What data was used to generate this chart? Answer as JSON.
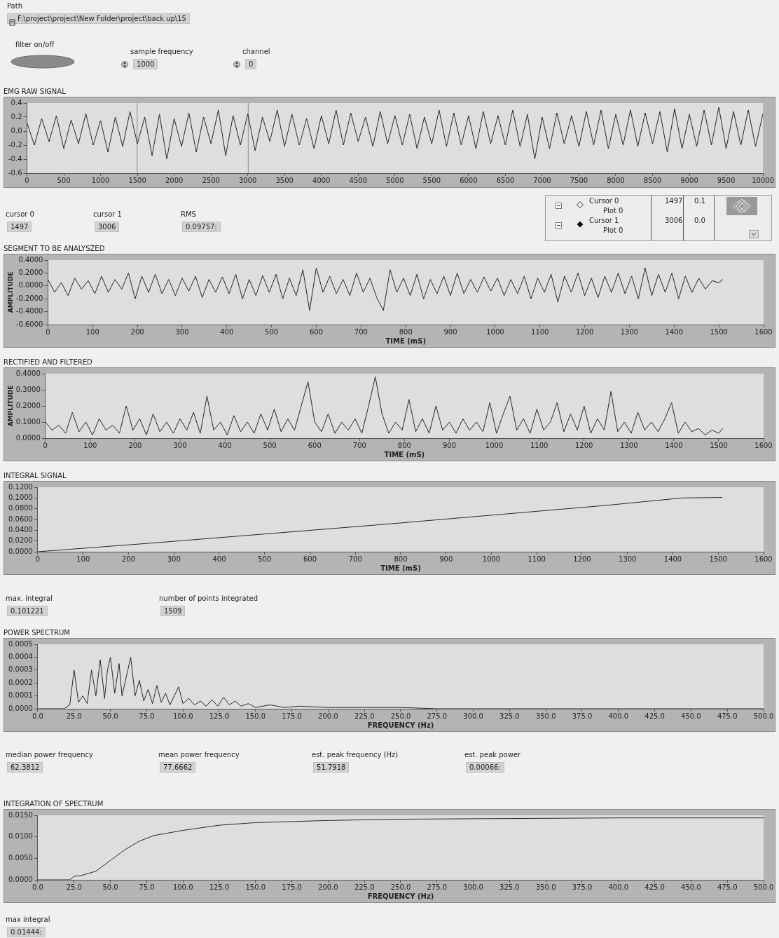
{
  "chart_data": [
    {
      "type": "other",
      "annotations": [
        "Path",
        "F:\\project\\project\\New Folder\\project\\back up\\15",
        "filter on/off",
        "sample frequency",
        "1000",
        "channel",
        "0"
      ]
    },
    {
      "type": "line",
      "title": "EMG RAW SIGNAL",
      "color": "#262626",
      "xlim": [
        0,
        10000
      ],
      "xticks": [
        0,
        500,
        1000,
        1500,
        2000,
        2500,
        3000,
        3500,
        4000,
        4500,
        5000,
        5500,
        6000,
        6500,
        7000,
        7500,
        8000,
        8500,
        9000,
        9500,
        10000
      ],
      "ylim": [
        -0.6,
        0.4
      ],
      "yticks": [
        {
          "value": -0.6,
          "label": "-0.6"
        },
        {
          "value": -0.4,
          "label": "-0.4"
        },
        {
          "value": -0.2,
          "label": "-0.2"
        },
        {
          "value": 0,
          "label": "0.0"
        },
        {
          "value": 0.2,
          "label": "0.2"
        },
        {
          "value": 0.4,
          "label": "0.4"
        }
      ],
      "ref_lines": [
        {
          "axis": "x",
          "value": 1497,
          "color": "#8c8c8c"
        },
        {
          "axis": "x",
          "value": 3006,
          "color": "#8c8c8c"
        }
      ],
      "x": [
        0,
        100,
        200,
        300,
        400,
        500,
        600,
        700,
        800,
        900,
        1000,
        1100,
        1200,
        1300,
        1400,
        1500,
        1600,
        1700,
        1800,
        1900,
        2000,
        2100,
        2200,
        2300,
        2400,
        2500,
        2600,
        2700,
        2800,
        2900,
        3000,
        3100,
        3200,
        3300,
        3400,
        3500,
        3600,
        3700,
        3800,
        3900,
        4000,
        4100,
        4200,
        4300,
        4400,
        4500,
        4600,
        4700,
        4800,
        4900,
        5000,
        5100,
        5200,
        5300,
        5400,
        5500,
        5600,
        5700,
        5800,
        5900,
        6000,
        6100,
        6200,
        6300,
        6400,
        6500,
        6600,
        6700,
        6800,
        6900,
        7000,
        7100,
        7200,
        7300,
        7400,
        7500,
        7600,
        7700,
        7800,
        7900,
        8000,
        8100,
        8200,
        8300,
        8400,
        8500,
        8600,
        8700,
        8800,
        8900,
        9000,
        9100,
        9200,
        9300,
        9400,
        9500,
        9600,
        9700,
        9800,
        9900,
        10000
      ],
      "values": [
        0.12,
        -0.2,
        0.18,
        -0.15,
        0.22,
        -0.25,
        0.16,
        -0.18,
        0.25,
        -0.2,
        0.15,
        -0.3,
        0.2,
        -0.22,
        0.28,
        -0.18,
        0.2,
        -0.35,
        0.24,
        -0.4,
        0.18,
        -0.22,
        0.26,
        -0.3,
        0.2,
        -0.18,
        0.3,
        -0.35,
        0.22,
        -0.2,
        0.25,
        -0.28,
        0.2,
        -0.15,
        0.3,
        -0.22,
        0.24,
        -0.2,
        0.18,
        -0.25,
        0.22,
        -0.18,
        0.3,
        -0.2,
        0.26,
        -0.15,
        0.2,
        -0.22,
        0.28,
        -0.18,
        0.22,
        -0.2,
        0.24,
        -0.25,
        0.2,
        -0.18,
        0.3,
        -0.22,
        0.26,
        -0.2,
        0.22,
        -0.25,
        0.28,
        -0.18,
        0.22,
        -0.2,
        0.3,
        -0.22,
        0.24,
        -0.4,
        0.2,
        -0.25,
        0.26,
        -0.18,
        0.22,
        -0.22,
        0.28,
        -0.2,
        0.3,
        -0.25,
        0.24,
        -0.2,
        0.3,
        -0.22,
        0.26,
        -0.18,
        0.28,
        -0.3,
        0.32,
        -0.25,
        0.24,
        -0.22,
        0.3,
        -0.2,
        0.34,
        -0.25,
        0.28,
        -0.2,
        0.3,
        -0.22,
        0.25
      ]
    },
    {
      "type": "other",
      "annotations": [
        "cursor 0",
        "1497",
        "cursor 1",
        "3006",
        "RMS",
        "0.09757:"
      ]
    },
    {
      "type": "other",
      "annotations": [
        "Cursor 0",
        "Plot 0",
        "1497",
        "0.1",
        "Cursor 1",
        "Plot 0",
        "3006",
        "0.0"
      ]
    },
    {
      "type": "line",
      "title": "SEGMENT TO BE ANALYSZED",
      "xlabel": "TIME (mS)",
      "ylabel": "AMPLITUDE",
      "color": "#262626",
      "xlim": [
        0,
        1600
      ],
      "xticks": [
        0,
        100,
        200,
        300,
        400,
        500,
        600,
        700,
        800,
        900,
        1000,
        1100,
        1200,
        1300,
        1400,
        1500,
        1600
      ],
      "ylim": [
        -0.6,
        0.4
      ],
      "yticks": [
        {
          "value": -0.6,
          "label": "-0.6000"
        },
        {
          "value": -0.4,
          "label": "-0.4000"
        },
        {
          "value": -0.2,
          "label": "-0.2000"
        },
        {
          "value": 0,
          "label": "0.0000"
        },
        {
          "value": 0.2,
          "label": "0.2000"
        },
        {
          "value": 0.4,
          "label": "0.4000"
        }
      ],
      "x": [
        0,
        15,
        30,
        45,
        60,
        75,
        90,
        105,
        120,
        135,
        150,
        165,
        180,
        195,
        210,
        225,
        240,
        255,
        270,
        285,
        300,
        315,
        330,
        345,
        360,
        375,
        390,
        405,
        420,
        435,
        450,
        465,
        480,
        495,
        510,
        525,
        540,
        555,
        570,
        585,
        600,
        615,
        630,
        645,
        660,
        675,
        690,
        705,
        720,
        735,
        750,
        765,
        780,
        795,
        810,
        825,
        840,
        855,
        870,
        885,
        900,
        915,
        930,
        945,
        960,
        975,
        990,
        1005,
        1020,
        1035,
        1050,
        1065,
        1080,
        1095,
        1110,
        1125,
        1140,
        1155,
        1170,
        1185,
        1200,
        1215,
        1230,
        1245,
        1260,
        1275,
        1290,
        1305,
        1320,
        1335,
        1350,
        1365,
        1380,
        1395,
        1410,
        1425,
        1440,
        1455,
        1470,
        1485,
        1500,
        1509
      ],
      "values": [
        0.1,
        -0.1,
        0.05,
        -0.15,
        0.12,
        -0.05,
        0.08,
        -0.12,
        0.15,
        -0.1,
        0.1,
        -0.05,
        0.2,
        -0.2,
        0.15,
        -0.1,
        0.18,
        -0.12,
        0.1,
        -0.15,
        0.12,
        -0.08,
        0.15,
        -0.18,
        0.1,
        -0.1,
        0.14,
        -0.12,
        0.18,
        -0.2,
        0.1,
        -0.15,
        0.16,
        -0.1,
        0.18,
        -0.2,
        0.12,
        -0.15,
        0.25,
        -0.38,
        0.28,
        -0.1,
        0.15,
        -0.12,
        0.1,
        -0.15,
        0.2,
        -0.1,
        0.12,
        -0.18,
        -0.38,
        0.25,
        -0.1,
        0.12,
        -0.15,
        0.18,
        -0.2,
        0.1,
        -0.12,
        0.15,
        -0.15,
        0.2,
        -0.12,
        0.1,
        -0.1,
        0.14,
        -0.08,
        0.12,
        -0.15,
        0.1,
        -0.12,
        0.15,
        -0.2,
        0.12,
        -0.1,
        0.18,
        -0.25,
        0.15,
        -0.1,
        0.2,
        -0.15,
        0.12,
        -0.18,
        0.15,
        -0.1,
        0.2,
        -0.12,
        0.15,
        -0.2,
        0.28,
        -0.15,
        0.18,
        -0.1,
        0.2,
        -0.2,
        0.15,
        -0.1,
        0.12,
        -0.05,
        0.08,
        0.05,
        0.1
      ]
    },
    {
      "type": "line",
      "title": "RECTIFIED AND FILTERED",
      "xlabel": "TIME (mS)",
      "ylabel": "AMPLITUDE",
      "color": "#262626",
      "xlim": [
        0,
        1600
      ],
      "xticks": [
        0,
        100,
        200,
        300,
        400,
        500,
        600,
        700,
        800,
        900,
        1000,
        1100,
        1200,
        1300,
        1400,
        1500,
        1600
      ],
      "ylim": [
        0,
        0.4
      ],
      "yticks": [
        {
          "value": 0,
          "label": "0.0000"
        },
        {
          "value": 0.1,
          "label": "0.1000"
        },
        {
          "value": 0.2,
          "label": "0.2000"
        },
        {
          "value": 0.3,
          "label": "0.3000"
        },
        {
          "value": 0.4,
          "label": "0.4000"
        }
      ],
      "x": [
        0,
        15,
        30,
        45,
        60,
        75,
        90,
        105,
        120,
        135,
        150,
        165,
        180,
        195,
        210,
        225,
        240,
        255,
        270,
        285,
        300,
        315,
        330,
        345,
        360,
        375,
        390,
        405,
        420,
        435,
        450,
        465,
        480,
        495,
        510,
        525,
        540,
        555,
        570,
        585,
        600,
        615,
        630,
        645,
        660,
        675,
        690,
        705,
        720,
        735,
        750,
        765,
        780,
        795,
        810,
        825,
        840,
        855,
        870,
        885,
        900,
        915,
        930,
        945,
        960,
        975,
        990,
        1005,
        1020,
        1035,
        1050,
        1065,
        1080,
        1095,
        1110,
        1125,
        1140,
        1155,
        1170,
        1185,
        1200,
        1215,
        1230,
        1245,
        1260,
        1275,
        1290,
        1305,
        1320,
        1335,
        1350,
        1365,
        1380,
        1395,
        1410,
        1425,
        1440,
        1455,
        1470,
        1485,
        1500,
        1509
      ],
      "values": [
        0.1,
        0.05,
        0.08,
        0.03,
        0.16,
        0.04,
        0.1,
        0.02,
        0.12,
        0.05,
        0.08,
        0.03,
        0.2,
        0.05,
        0.12,
        0.02,
        0.15,
        0.04,
        0.1,
        0.03,
        0.12,
        0.05,
        0.16,
        0.03,
        0.26,
        0.05,
        0.1,
        0.02,
        0.14,
        0.04,
        0.1,
        0.03,
        0.15,
        0.05,
        0.18,
        0.04,
        0.12,
        0.05,
        0.2,
        0.35,
        0.1,
        0.04,
        0.15,
        0.03,
        0.1,
        0.05,
        0.12,
        0.03,
        0.2,
        0.38,
        0.15,
        0.03,
        0.1,
        0.05,
        0.24,
        0.04,
        0.12,
        0.03,
        0.2,
        0.05,
        0.1,
        0.03,
        0.12,
        0.05,
        0.1,
        0.04,
        0.22,
        0.03,
        0.15,
        0.26,
        0.05,
        0.12,
        0.03,
        0.18,
        0.05,
        0.1,
        0.22,
        0.04,
        0.15,
        0.05,
        0.2,
        0.03,
        0.12,
        0.05,
        0.29,
        0.04,
        0.1,
        0.03,
        0.16,
        0.05,
        0.1,
        0.04,
        0.12,
        0.22,
        0.03,
        0.1,
        0.04,
        0.06,
        0.02,
        0.05,
        0.03,
        0.06
      ]
    },
    {
      "type": "line",
      "title": "INTEGRAL SIGNAL",
      "xlabel": "TIME (mS)",
      "color": "#262626",
      "xlim": [
        0,
        1600
      ],
      "xticks": [
        0,
        100,
        200,
        300,
        400,
        500,
        600,
        700,
        800,
        900,
        1000,
        1100,
        1200,
        1300,
        1400,
        1500,
        1600
      ],
      "ylim": [
        0,
        0.12
      ],
      "yticks": [
        {
          "value": 0,
          "label": "0.0000"
        },
        {
          "value": 0.02,
          "label": "0.0200"
        },
        {
          "value": 0.04,
          "label": "0.0400"
        },
        {
          "value": 0.06,
          "label": "0.0600"
        },
        {
          "value": 0.08,
          "label": "0.0800"
        },
        {
          "value": 0.1,
          "label": "0.1000"
        },
        {
          "value": 0.12,
          "label": "0.1200"
        }
      ],
      "x": [
        0,
        250,
        500,
        750,
        1000,
        1250,
        1420,
        1509
      ],
      "values": [
        0,
        0.016,
        0.033,
        0.05,
        0.068,
        0.086,
        0.1,
        0.101
      ]
    },
    {
      "type": "other",
      "annotations": [
        "max. integral",
        "0.101221",
        "number of points integrated",
        "1509"
      ]
    },
    {
      "type": "line",
      "title": "POWER SPECTRUM",
      "xlabel": "FREQUENCY (Hz)",
      "color": "#262626",
      "xlim": [
        0,
        500
      ],
      "xticks": [
        {
          "value": 0,
          "label": "0.0"
        },
        {
          "value": 25,
          "label": "25.0"
        },
        {
          "value": 50,
          "label": "50.0"
        },
        {
          "value": 75,
          "label": "75.0"
        },
        {
          "value": 100,
          "label": "100.0"
        },
        {
          "value": 125,
          "label": "125.0"
        },
        {
          "value": 150,
          "label": "150.0"
        },
        {
          "value": 175,
          "label": "175.0"
        },
        {
          "value": 200,
          "label": "200.0"
        },
        {
          "value": 225,
          "label": "225.0"
        },
        {
          "value": 250,
          "label": "250.0"
        },
        {
          "value": 275,
          "label": "275.0"
        },
        {
          "value": 300,
          "label": "300.0"
        },
        {
          "value": 325,
          "label": "325.0"
        },
        {
          "value": 350,
          "label": "350.0"
        },
        {
          "value": 375,
          "label": "375.0"
        },
        {
          "value": 400,
          "label": "400.0"
        },
        {
          "value": 425,
          "label": "425.0"
        },
        {
          "value": 450,
          "label": "450.0"
        },
        {
          "value": 475,
          "label": "475.0"
        },
        {
          "value": 500,
          "label": "500.0"
        }
      ],
      "ylim": [
        0,
        0.0005
      ],
      "yticks": [
        {
          "value": 0,
          "label": "0.0000"
        },
        {
          "value": 0.0001,
          "label": "0.0001"
        },
        {
          "value": 0.0002,
          "label": "0.0002"
        },
        {
          "value": 0.0003,
          "label": "0.0003"
        },
        {
          "value": 0.0004,
          "label": "0.0004"
        },
        {
          "value": 0.0005,
          "label": "0.0005"
        }
      ],
      "x": [
        0,
        18,
        22,
        25,
        28,
        31,
        34,
        37,
        40,
        43,
        46,
        48,
        50,
        53,
        56,
        58,
        61,
        64,
        67,
        70,
        73,
        76,
        79,
        82,
        85,
        88,
        91,
        94,
        97,
        100,
        104,
        108,
        112,
        116,
        120,
        124,
        128,
        132,
        136,
        140,
        145,
        150,
        160,
        170,
        180,
        200,
        225,
        250,
        275,
        300,
        500
      ],
      "values": [
        0,
        0,
        3e-05,
        0.0003,
        5e-05,
        0.0001,
        4e-05,
        0.0003,
        0.0001,
        0.00038,
        8e-05,
        0.0003,
        0.0004,
        0.00012,
        0.00035,
        0.0001,
        0.00025,
        0.0004,
        0.0001,
        0.00022,
        6e-05,
        0.00015,
        4e-05,
        0.00018,
        5e-05,
        0.00012,
        3e-05,
        0.0001,
        0.00017,
        4e-05,
        8e-05,
        3e-05,
        6e-05,
        2e-05,
        7e-05,
        2e-05,
        9e-05,
        3e-05,
        6e-05,
        2e-05,
        4e-05,
        1e-05,
        3e-05,
        1e-05,
        2e-05,
        1e-05,
        1e-05,
        1e-05,
        0,
        0,
        0
      ]
    },
    {
      "type": "other",
      "annotations": [
        "median power frequency",
        "62.3812",
        "mean power frequency",
        "77.6662",
        "est. peak frequency (Hz)",
        "51.7918",
        "est. peak power",
        "0.00066:"
      ]
    },
    {
      "type": "line",
      "title": "INTEGRATION OF SPECTRUM",
      "xlabel": "FREQUENCY (Hz)",
      "color": "#262626",
      "xlim": [
        0,
        500
      ],
      "xticks": [
        {
          "value": 0,
          "label": "0.0"
        },
        {
          "value": 25,
          "label": "25.0"
        },
        {
          "value": 50,
          "label": "50.0"
        },
        {
          "value": 75,
          "label": "75.0"
        },
        {
          "value": 100,
          "label": "100.0"
        },
        {
          "value": 125,
          "label": "125.0"
        },
        {
          "value": 150,
          "label": "150.0"
        },
        {
          "value": 175,
          "label": "175.0"
        },
        {
          "value": 200,
          "label": "200.0"
        },
        {
          "value": 225,
          "label": "225.0"
        },
        {
          "value": 250,
          "label": "250.0"
        },
        {
          "value": 275,
          "label": "275.0"
        },
        {
          "value": 300,
          "label": "300.0"
        },
        {
          "value": 325,
          "label": "325.0"
        },
        {
          "value": 350,
          "label": "350.0"
        },
        {
          "value": 375,
          "label": "375.0"
        },
        {
          "value": 400,
          "label": "400.0"
        },
        {
          "value": 425,
          "label": "425.0"
        },
        {
          "value": 450,
          "label": "450.0"
        },
        {
          "value": 475,
          "label": "475.0"
        },
        {
          "value": 500,
          "label": "500.0"
        }
      ],
      "ylim": [
        0,
        0.015
      ],
      "yticks": [
        {
          "value": 0,
          "label": "0.0000"
        },
        {
          "value": 0.005,
          "label": "0.0050"
        },
        {
          "value": 0.01,
          "label": "0.0100"
        },
        {
          "value": 0.015,
          "label": "0.0150"
        }
      ],
      "x": [
        0,
        22,
        25,
        30,
        40,
        50,
        60,
        70,
        80,
        100,
        125,
        150,
        200,
        250,
        300,
        400,
        500
      ],
      "values": [
        0,
        0,
        0.0008,
        0.001,
        0.002,
        0.0045,
        0.007,
        0.009,
        0.0103,
        0.0115,
        0.0127,
        0.0133,
        0.0138,
        0.0141,
        0.0142,
        0.0144,
        0.0144
      ]
    },
    {
      "type": "other",
      "annotations": [
        "max integral",
        "0.01444:"
      ]
    }
  ]
}
